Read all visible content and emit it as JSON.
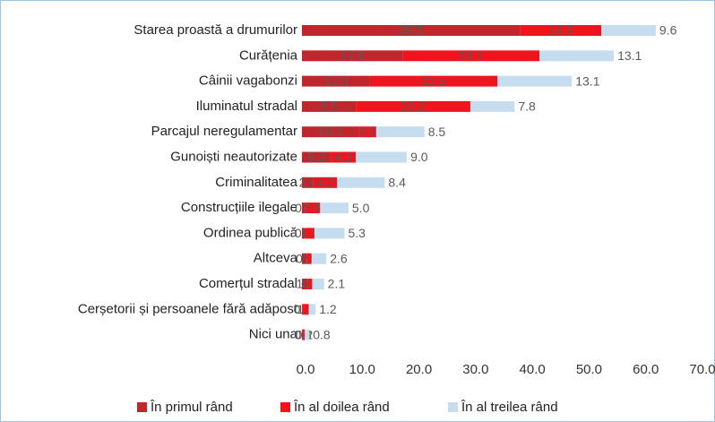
{
  "chart_data": {
    "type": "stacked-bar-horizontal",
    "categories": [
      "Starea proastă a drumurilor",
      "Curățenia",
      "Câinii vagabonzi",
      "Iluminatul stradal",
      "Parcajul neregulamentar",
      "Gunoiști neautorizate",
      "Criminalitatea",
      "Construcțiile ilegale",
      "Ordinea publică",
      "Altceva",
      "Comerțul stradal",
      "Cerșetorii și persoanele fără adăpost",
      "Nici una"
    ],
    "series": [
      {
        "name": "În primul rând",
        "color": "#c0272d",
        "values": [
          38.5,
          17.8,
          12.0,
          9.5,
          10.1,
          5.2,
          2.0,
          0.6,
          0.5,
          0.9,
          1.0,
          0.1,
          0.3
        ],
        "value_labels": [
          "38.5",
          "17.8",
          "12.0",
          "9.5",
          "10.1",
          "5.2",
          "2.0",
          "0.6",
          "0.5",
          "0.9",
          "1.0",
          "0.1",
          "0.3"
        ]
      },
      {
        "name": "În al doilea rând",
        "color": "#f0141e",
        "values": [
          14.3,
          24.1,
          22.5,
          20.2,
          3.0,
          4.3,
          4.2,
          2.6,
          1.7,
          0.8,
          0.8,
          1.1,
          0.2
        ],
        "value_labels": [
          "14.3",
          "24.1",
          "22.5",
          "20.2",
          "3.0",
          "4.3",
          "4.2",
          "2.6",
          "1.7",
          "0.8",
          "0.8",
          "1.1",
          "0.2"
        ]
      },
      {
        "name": "În al treilea rând",
        "color": "#c6dcef",
        "values": [
          9.6,
          13.1,
          13.1,
          7.8,
          8.5,
          9.0,
          8.4,
          5.0,
          5.3,
          2.6,
          2.1,
          1.2,
          0.8
        ],
        "value_labels": [
          "9.6",
          "13.1",
          "13.1",
          "7.8",
          "8.5",
          "9.0",
          "8.4",
          "5.0",
          "5.3",
          "2.6",
          "2.1",
          "1.2",
          "0.8"
        ]
      }
    ],
    "xlim": [
      0,
      70
    ],
    "xticks": [
      {
        "value": 0,
        "label": "0.0"
      },
      {
        "value": 10,
        "label": "10.0"
      },
      {
        "value": 20,
        "label": "20.0"
      },
      {
        "value": 30,
        "label": "30.0"
      },
      {
        "value": 40,
        "label": "40.0"
      },
      {
        "value": 50,
        "label": "50.0"
      },
      {
        "value": 60,
        "label": "60.0"
      },
      {
        "value": 70,
        "label": "70.0"
      }
    ],
    "legend": "bottom"
  }
}
